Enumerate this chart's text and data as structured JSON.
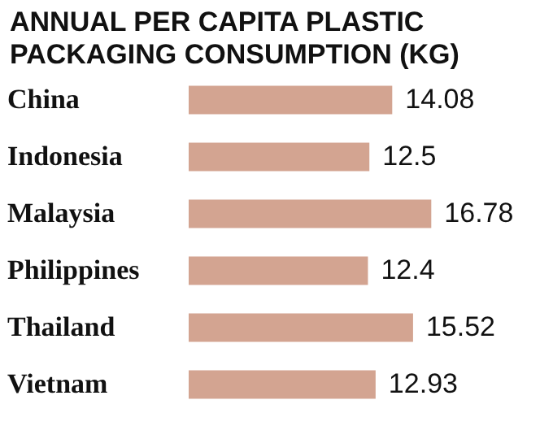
{
  "chart_data": {
    "type": "bar",
    "orientation": "horizontal",
    "title": "ANNUAL PER CAPITA PLASTIC PACKAGING CONSUMPTION (KG)",
    "categories": [
      "China",
      "Indonesia",
      "Malaysia",
      "Philippines",
      "Thailand",
      "Vietnam"
    ],
    "values": [
      14.08,
      12.5,
      16.78,
      12.4,
      15.52,
      12.93
    ],
    "color": "#d3a491",
    "data_labels": true
  }
}
